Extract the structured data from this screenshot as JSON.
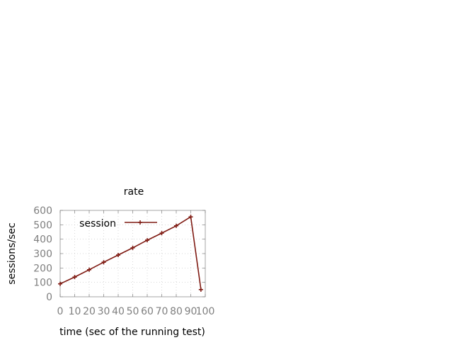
{
  "chart_data": {
    "type": "line",
    "title": "rate",
    "xlabel": "time (sec of the running test)",
    "ylabel": "sessions/sec",
    "xlim": [
      0,
      100
    ],
    "ylim": [
      0,
      600
    ],
    "xticks": [
      "0",
      "10",
      "20",
      "30",
      "40",
      "50",
      "60",
      "70",
      "80",
      "90",
      "100"
    ],
    "yticks": [
      "0",
      "100",
      "200",
      "300",
      "400",
      "500",
      "600"
    ],
    "grid": true,
    "legend_position": "top-left",
    "series": [
      {
        "name": "session",
        "color": "#7f1a12",
        "marker": "plus",
        "x": [
          0,
          10,
          20,
          30,
          40,
          50,
          60,
          70,
          80,
          90,
          97
        ],
        "y": [
          90,
          137,
          188,
          240,
          290,
          340,
          393,
          442,
          493,
          555,
          50
        ]
      }
    ]
  }
}
